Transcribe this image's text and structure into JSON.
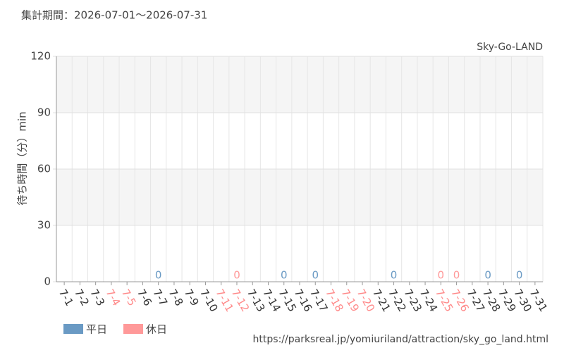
{
  "chart_data": {
    "type": "bar",
    "period": "集計期間：2026-07-01～2026-07-31",
    "title": "Sky-Go-LAND",
    "y_label": "待ち時間（分）min",
    "source": "https://parksreal.jp/yomiuriland/attraction/sky_go_land.html",
    "categories": [
      "7-1",
      "7-2",
      "7-3",
      "7-4",
      "7-5",
      "7-6",
      "7-7",
      "7-8",
      "7-9",
      "7-10",
      "7-11",
      "7-12",
      "7-13",
      "7-14",
      "7-15",
      "7-16",
      "7-17",
      "7-18",
      "7-19",
      "7-20",
      "7-21",
      "7-22",
      "7-23",
      "7-24",
      "7-25",
      "7-26",
      "7-27",
      "7-28",
      "7-29",
      "7-30",
      "7-31"
    ],
    "category_colors": [
      "#333",
      "#333",
      "#333",
      "#ff8a8a",
      "#ff8a8a",
      "#333",
      "#333",
      "#333",
      "#333",
      "#333",
      "#ff8a8a",
      "#ff8a8a",
      "#333",
      "#333",
      "#333",
      "#333",
      "#333",
      "#ff8a8a",
      "#ff8a8a",
      "#ff8a8a",
      "#333",
      "#333",
      "#333",
      "#333",
      "#ff8a8a",
      "#ff8a8a",
      "#333",
      "#333",
      "#333",
      "#333",
      "#333"
    ],
    "series": [
      {
        "name": "平日",
        "color": "#6a9ac4",
        "values": [
          null,
          null,
          null,
          null,
          null,
          null,
          0,
          null,
          null,
          null,
          null,
          null,
          null,
          null,
          0,
          null,
          0,
          null,
          null,
          null,
          null,
          0,
          null,
          null,
          null,
          null,
          null,
          0,
          null,
          0,
          null
        ]
      },
      {
        "name": "休日",
        "color": "#ff9999",
        "values": [
          null,
          null,
          null,
          null,
          null,
          null,
          null,
          null,
          null,
          null,
          null,
          0,
          null,
          null,
          null,
          null,
          null,
          null,
          null,
          null,
          null,
          null,
          null,
          null,
          0,
          0,
          null,
          null,
          null,
          null,
          null
        ]
      }
    ],
    "ylim": [
      0,
      120
    ],
    "yticks": [
      0,
      30,
      60,
      90,
      120
    ],
    "grid": true
  }
}
